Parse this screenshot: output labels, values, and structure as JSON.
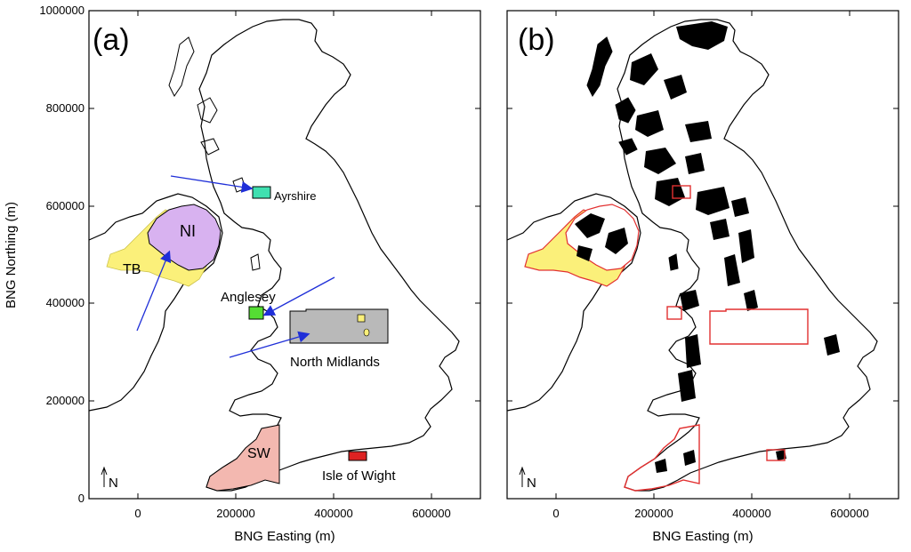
{
  "axes": {
    "ylabel": "BNG Northing (m)",
    "xlabel": "BNG Easting (m)",
    "y_ticks": [
      "1000000",
      "800000",
      "600000",
      "400000",
      "200000",
      "0"
    ],
    "x_ticks": [
      "0",
      "200000",
      "400000",
      "600000"
    ],
    "x_range": [
      -100000,
      700000
    ],
    "y_range": [
      0,
      1000000
    ]
  },
  "panel_a": {
    "letter": "(a)",
    "north": "N",
    "labels": {
      "ni": "NI",
      "tb": "TB",
      "ayrshire": "Ayrshire",
      "anglesey": "Anglesey",
      "north_midlands": "North Midlands",
      "sw": "SW",
      "isle_of_wight": "Isle of Wight"
    }
  },
  "panel_b": {
    "letter": "(b)",
    "north": "N"
  },
  "colors": {
    "ni": "#d8b2f0",
    "tb": "#fbf07a",
    "ayrshire": "#3fe0b0",
    "anglesey": "#55dd33",
    "north_midlands": "#b9b9b9",
    "sw": "#f3b8b0",
    "isle_of_wight": "#dd2222",
    "arrows": "#1f2fd8",
    "outline_red": "#e23030"
  }
}
